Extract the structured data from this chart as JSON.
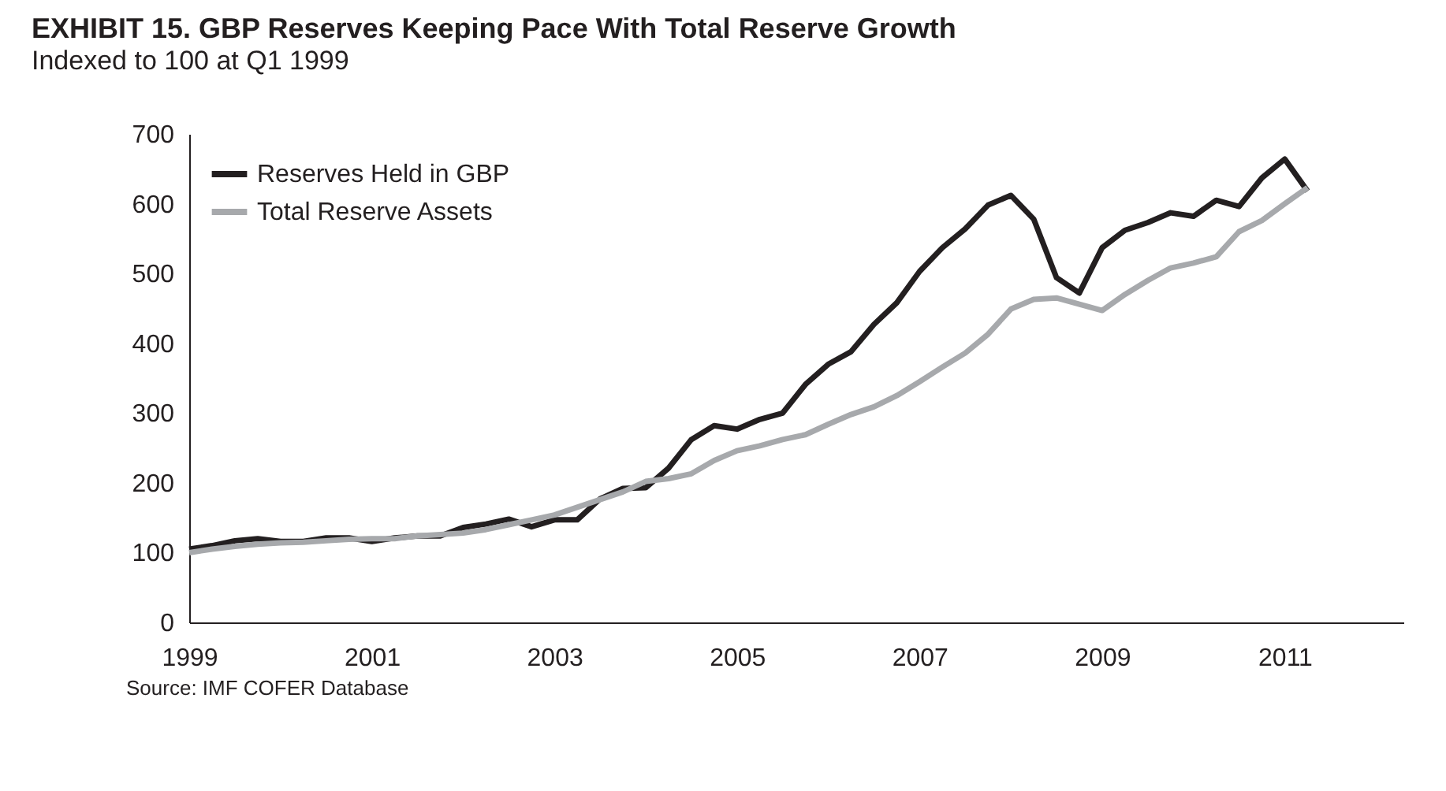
{
  "chart_data": {
    "type": "line",
    "title": "EXHIBIT 15.     GBP Reserves Keeping Pace With Total Reserve Growth",
    "subtitle": "Indexed to 100 at Q1 1999",
    "x": [
      1999.0,
      1999.25,
      1999.5,
      1999.75,
      2000.0,
      2000.25,
      2000.5,
      2000.75,
      2001.0,
      2001.25,
      2001.5,
      2001.75,
      2002.0,
      2002.25,
      2002.5,
      2002.75,
      2003.0,
      2003.25,
      2003.5,
      2003.75,
      2004.0,
      2004.25,
      2004.5,
      2004.75,
      2005.0,
      2005.25,
      2005.5,
      2005.75,
      2006.0,
      2006.25,
      2006.5,
      2006.75,
      2007.0,
      2007.25,
      2007.5,
      2007.75,
      2008.0,
      2008.25,
      2008.5,
      2008.75,
      2009.0,
      2009.25,
      2009.5,
      2009.75,
      2010.0,
      2010.25,
      2010.5,
      2010.75,
      2011.0,
      2011.25
    ],
    "series": [
      {
        "name": "Reserves Held in GBP",
        "color": "#231f20",
        "values": [
          105,
          110,
          117,
          120,
          116,
          116,
          121,
          121,
          116,
          121,
          124,
          124,
          136,
          141,
          148,
          137,
          147,
          147,
          177,
          192,
          193,
          221,
          262,
          282,
          277,
          291,
          300,
          341,
          370,
          388,
          427,
          458,
          503,
          537,
          564,
          598,
          612,
          578,
          494,
          472,
          537,
          562,
          573,
          587,
          582,
          605,
          596,
          637,
          664,
          618
        ]
      },
      {
        "name": "Total Reserve Assets",
        "color": "#a7a9ac",
        "values": [
          100,
          105,
          109,
          112,
          114,
          115,
          117,
          119,
          120,
          120,
          124,
          126,
          128,
          133,
          140,
          147,
          154,
          165,
          176,
          187,
          202,
          206,
          213,
          232,
          246,
          253,
          262,
          269,
          284,
          298,
          309,
          325,
          345,
          366,
          386,
          413,
          449,
          463,
          465,
          456,
          447,
          470,
          490,
          508,
          515,
          524,
          560,
          576,
          600,
          623
        ]
      }
    ],
    "xlim": [
      1999,
      2012.3
    ],
    "xticks": [
      1999,
      2001,
      2003,
      2005,
      2007,
      2009,
      2011
    ],
    "ylim": [
      0,
      700
    ],
    "yticks": [
      0,
      100,
      200,
      300,
      400,
      500,
      600,
      700
    ],
    "grid": false,
    "legend": "top left",
    "marker": "none",
    "line_style": "solid",
    "annotations": [
      "Source: IMF COFER Database"
    ]
  }
}
